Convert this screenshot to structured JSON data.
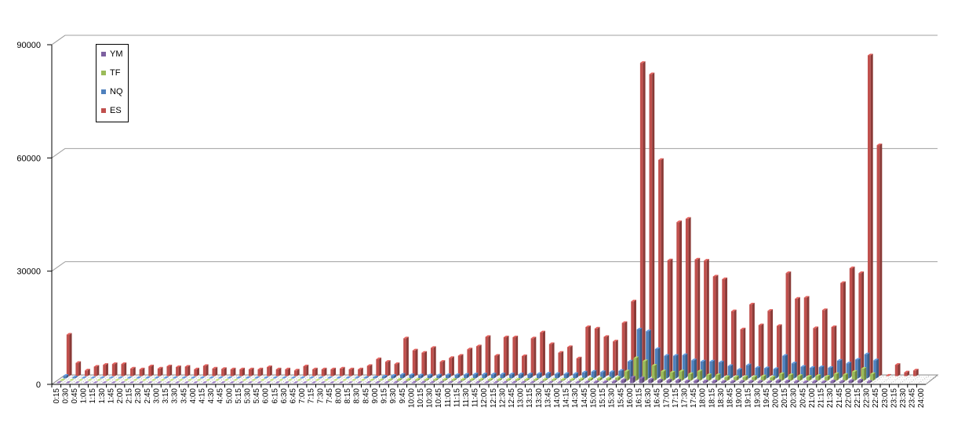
{
  "chart_data": {
    "type": "bar",
    "title": "",
    "xlabel": "",
    "ylabel": "",
    "ylim": [
      0,
      90000
    ],
    "y_ticks": [
      "0",
      "30000",
      "60000",
      "90000"
    ],
    "gridlines": true,
    "legend_position": "top-left",
    "categories": [
      "0:15",
      "0:30",
      "0:45",
      "1:00",
      "1:15",
      "1:30",
      "1:45",
      "2:00",
      "2:15",
      "2:30",
      "2:45",
      "3:00",
      "3:15",
      "3:30",
      "3:45",
      "4:00",
      "4:15",
      "4:30",
      "4:45",
      "5:00",
      "5:15",
      "5:30",
      "5:45",
      "6:00",
      "6:15",
      "6:30",
      "6:45",
      "7:00",
      "7:15",
      "7:30",
      "7:45",
      "8:00",
      "8:15",
      "8:30",
      "8:45",
      "9:00",
      "9:15",
      "9:30",
      "9:45",
      "10:00",
      "10:15",
      "10:30",
      "10:45",
      "11:00",
      "11:15",
      "11:30",
      "11:45",
      "12:00",
      "12:15",
      "12:30",
      "12:45",
      "13:00",
      "13:15",
      "13:30",
      "13:45",
      "14:00",
      "14:15",
      "14:30",
      "14:45",
      "15:00",
      "15:15",
      "15:30",
      "15:45",
      "16:00",
      "16:15",
      "16:30",
      "16:45",
      "17:00",
      "17:15",
      "17:30",
      "17:45",
      "18:00",
      "18:15",
      "18:30",
      "18:45",
      "19:00",
      "19:15",
      "19:30",
      "19:45",
      "20:00",
      "20:15",
      "20:30",
      "20:45",
      "21:00",
      "21:15",
      "21:30",
      "21:45",
      "22:00",
      "22:15",
      "22:30",
      "22:45",
      "23:00",
      "23:15",
      "23:30",
      "23:45",
      "24:00"
    ],
    "series": [
      {
        "name": "YM",
        "color": "#7d60a0",
        "values": [
          100,
          60,
          30,
          30,
          40,
          40,
          40,
          30,
          30,
          30,
          30,
          30,
          30,
          30,
          30,
          30,
          30,
          30,
          30,
          30,
          30,
          30,
          30,
          30,
          30,
          30,
          30,
          30,
          30,
          30,
          30,
          30,
          40,
          60,
          80,
          100,
          120,
          150,
          150,
          150,
          150,
          150,
          150,
          150,
          150,
          150,
          150,
          150,
          150,
          150,
          150,
          150,
          150,
          150,
          150,
          150,
          150,
          200,
          250,
          300,
          300,
          400,
          800,
          1500,
          1300,
          900,
          700,
          700,
          700,
          500,
          600,
          500,
          500,
          400,
          400,
          400,
          400,
          400,
          300,
          600,
          500,
          400,
          300,
          400,
          300,
          500,
          400,
          600,
          700,
          400,
          0,
          0,
          0,
          0,
          0,
          0
        ]
      },
      {
        "name": "TF",
        "color": "#9bbb59",
        "values": [
          100,
          50,
          30,
          30,
          30,
          30,
          30,
          30,
          30,
          30,
          30,
          30,
          30,
          30,
          30,
          30,
          30,
          30,
          30,
          30,
          30,
          30,
          30,
          30,
          30,
          30,
          30,
          30,
          30,
          30,
          30,
          30,
          40,
          60,
          100,
          150,
          200,
          300,
          300,
          300,
          300,
          300,
          300,
          300,
          300,
          300,
          300,
          300,
          300,
          300,
          300,
          300,
          300,
          300,
          300,
          300,
          300,
          400,
          500,
          600,
          600,
          800,
          2500,
          6000,
          5200,
          4000,
          2500,
          2200,
          2500,
          1800,
          2500,
          1500,
          1500,
          1000,
          1000,
          1000,
          1000,
          1200,
          900,
          1800,
          1500,
          1300,
          1100,
          1300,
          1100,
          1800,
          1600,
          2400,
          3200,
          1800,
          0,
          0,
          0,
          0,
          0,
          0
        ]
      },
      {
        "name": "NQ",
        "color": "#4f81bd",
        "values": [
          700,
          300,
          100,
          100,
          120,
          120,
          120,
          100,
          100,
          100,
          100,
          100,
          100,
          100,
          100,
          100,
          100,
          100,
          100,
          100,
          100,
          100,
          100,
          100,
          100,
          100,
          100,
          100,
          100,
          100,
          100,
          100,
          150,
          200,
          300,
          500,
          700,
          1000,
          900,
          800,
          800,
          800,
          900,
          900,
          1000,
          1100,
          1100,
          1100,
          1100,
          1100,
          1100,
          1100,
          1200,
          1300,
          1200,
          1200,
          1200,
          1600,
          1800,
          1700,
          1700,
          2000,
          4500,
          13000,
          12500,
          7800,
          6000,
          6000,
          6200,
          4800,
          4500,
          4500,
          4300,
          3300,
          2300,
          3500,
          2800,
          2700,
          2500,
          6000,
          4000,
          3100,
          2800,
          3000,
          2800,
          4700,
          4000,
          5000,
          6400,
          4800,
          0,
          0,
          0,
          0,
          0,
          0
        ]
      },
      {
        "name": "ES",
        "color": "#c0504d",
        "values": [
          11000,
          3500,
          1500,
          2500,
          3000,
          3200,
          3200,
          2000,
          1800,
          2600,
          2000,
          2600,
          2400,
          2500,
          1800,
          2700,
          2000,
          1900,
          1800,
          1800,
          1800,
          1800,
          2400,
          1800,
          1800,
          1500,
          2600,
          1800,
          1800,
          1800,
          2000,
          1800,
          1800,
          2700,
          4500,
          3800,
          3200,
          10000,
          6800,
          6200,
          7500,
          3800,
          4800,
          5400,
          7100,
          7900,
          10400,
          5400,
          10300,
          10300,
          5300,
          10000,
          11600,
          8500,
          6200,
          7700,
          4700,
          13000,
          12600,
          10400,
          9200,
          14100,
          19800,
          83000,
          80000,
          57300,
          30700,
          40800,
          41700,
          30900,
          30600,
          26400,
          25700,
          17200,
          12400,
          19000,
          13500,
          17300,
          13300,
          27300,
          20500,
          20800,
          12700,
          17500,
          13000,
          24700,
          28600,
          27300,
          85000,
          61200,
          100,
          3000,
          1000,
          1500,
          0,
          0
        ]
      }
    ]
  }
}
